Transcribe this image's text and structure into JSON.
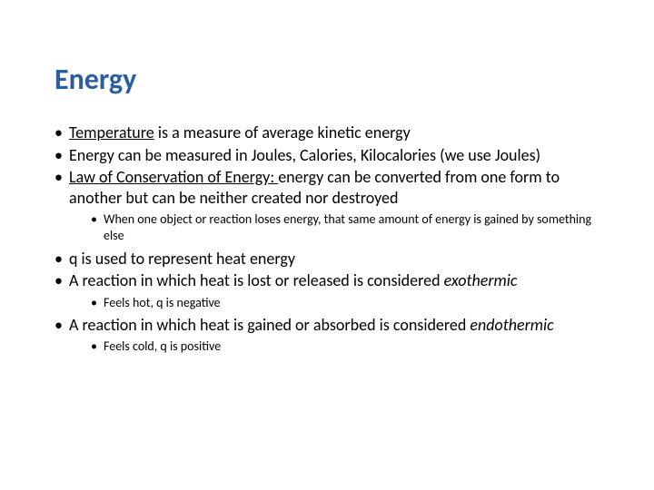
{
  "title": "Energy",
  "title_color": "#2a5da2",
  "title_fontsize_pt": 32,
  "body_fontsize_pt": 18,
  "sub_fontsize_pt": 14,
  "background_color": "#ffffff",
  "text_color": "#000000",
  "font_family": "Calibri",
  "bullets": {
    "b1_u": "Temperature",
    "b1_rest": " is a measure of average kinetic energy",
    "b2": "Energy can be measured in Joules, Calories, Kilocalories (we use Joules)",
    "b3_u": "Law of Conservation of Energy: ",
    "b3_rest": "energy can be converted from one form to another but can be neither created nor destroyed",
    "b3_sub1": "When one object or reaction loses energy, that same amount of energy is gained by something else",
    "b4": "q is used to represent heat energy",
    "b5_pre": "A reaction in which heat is lost or released is considered ",
    "b5_em": "exothermic",
    "b5_sub1": "Feels hot, q is negative",
    "b6_pre": "A reaction in which heat is gained or absorbed is considered ",
    "b6_em": "endothermic",
    "b6_sub1": "Feels cold, q is positive"
  }
}
